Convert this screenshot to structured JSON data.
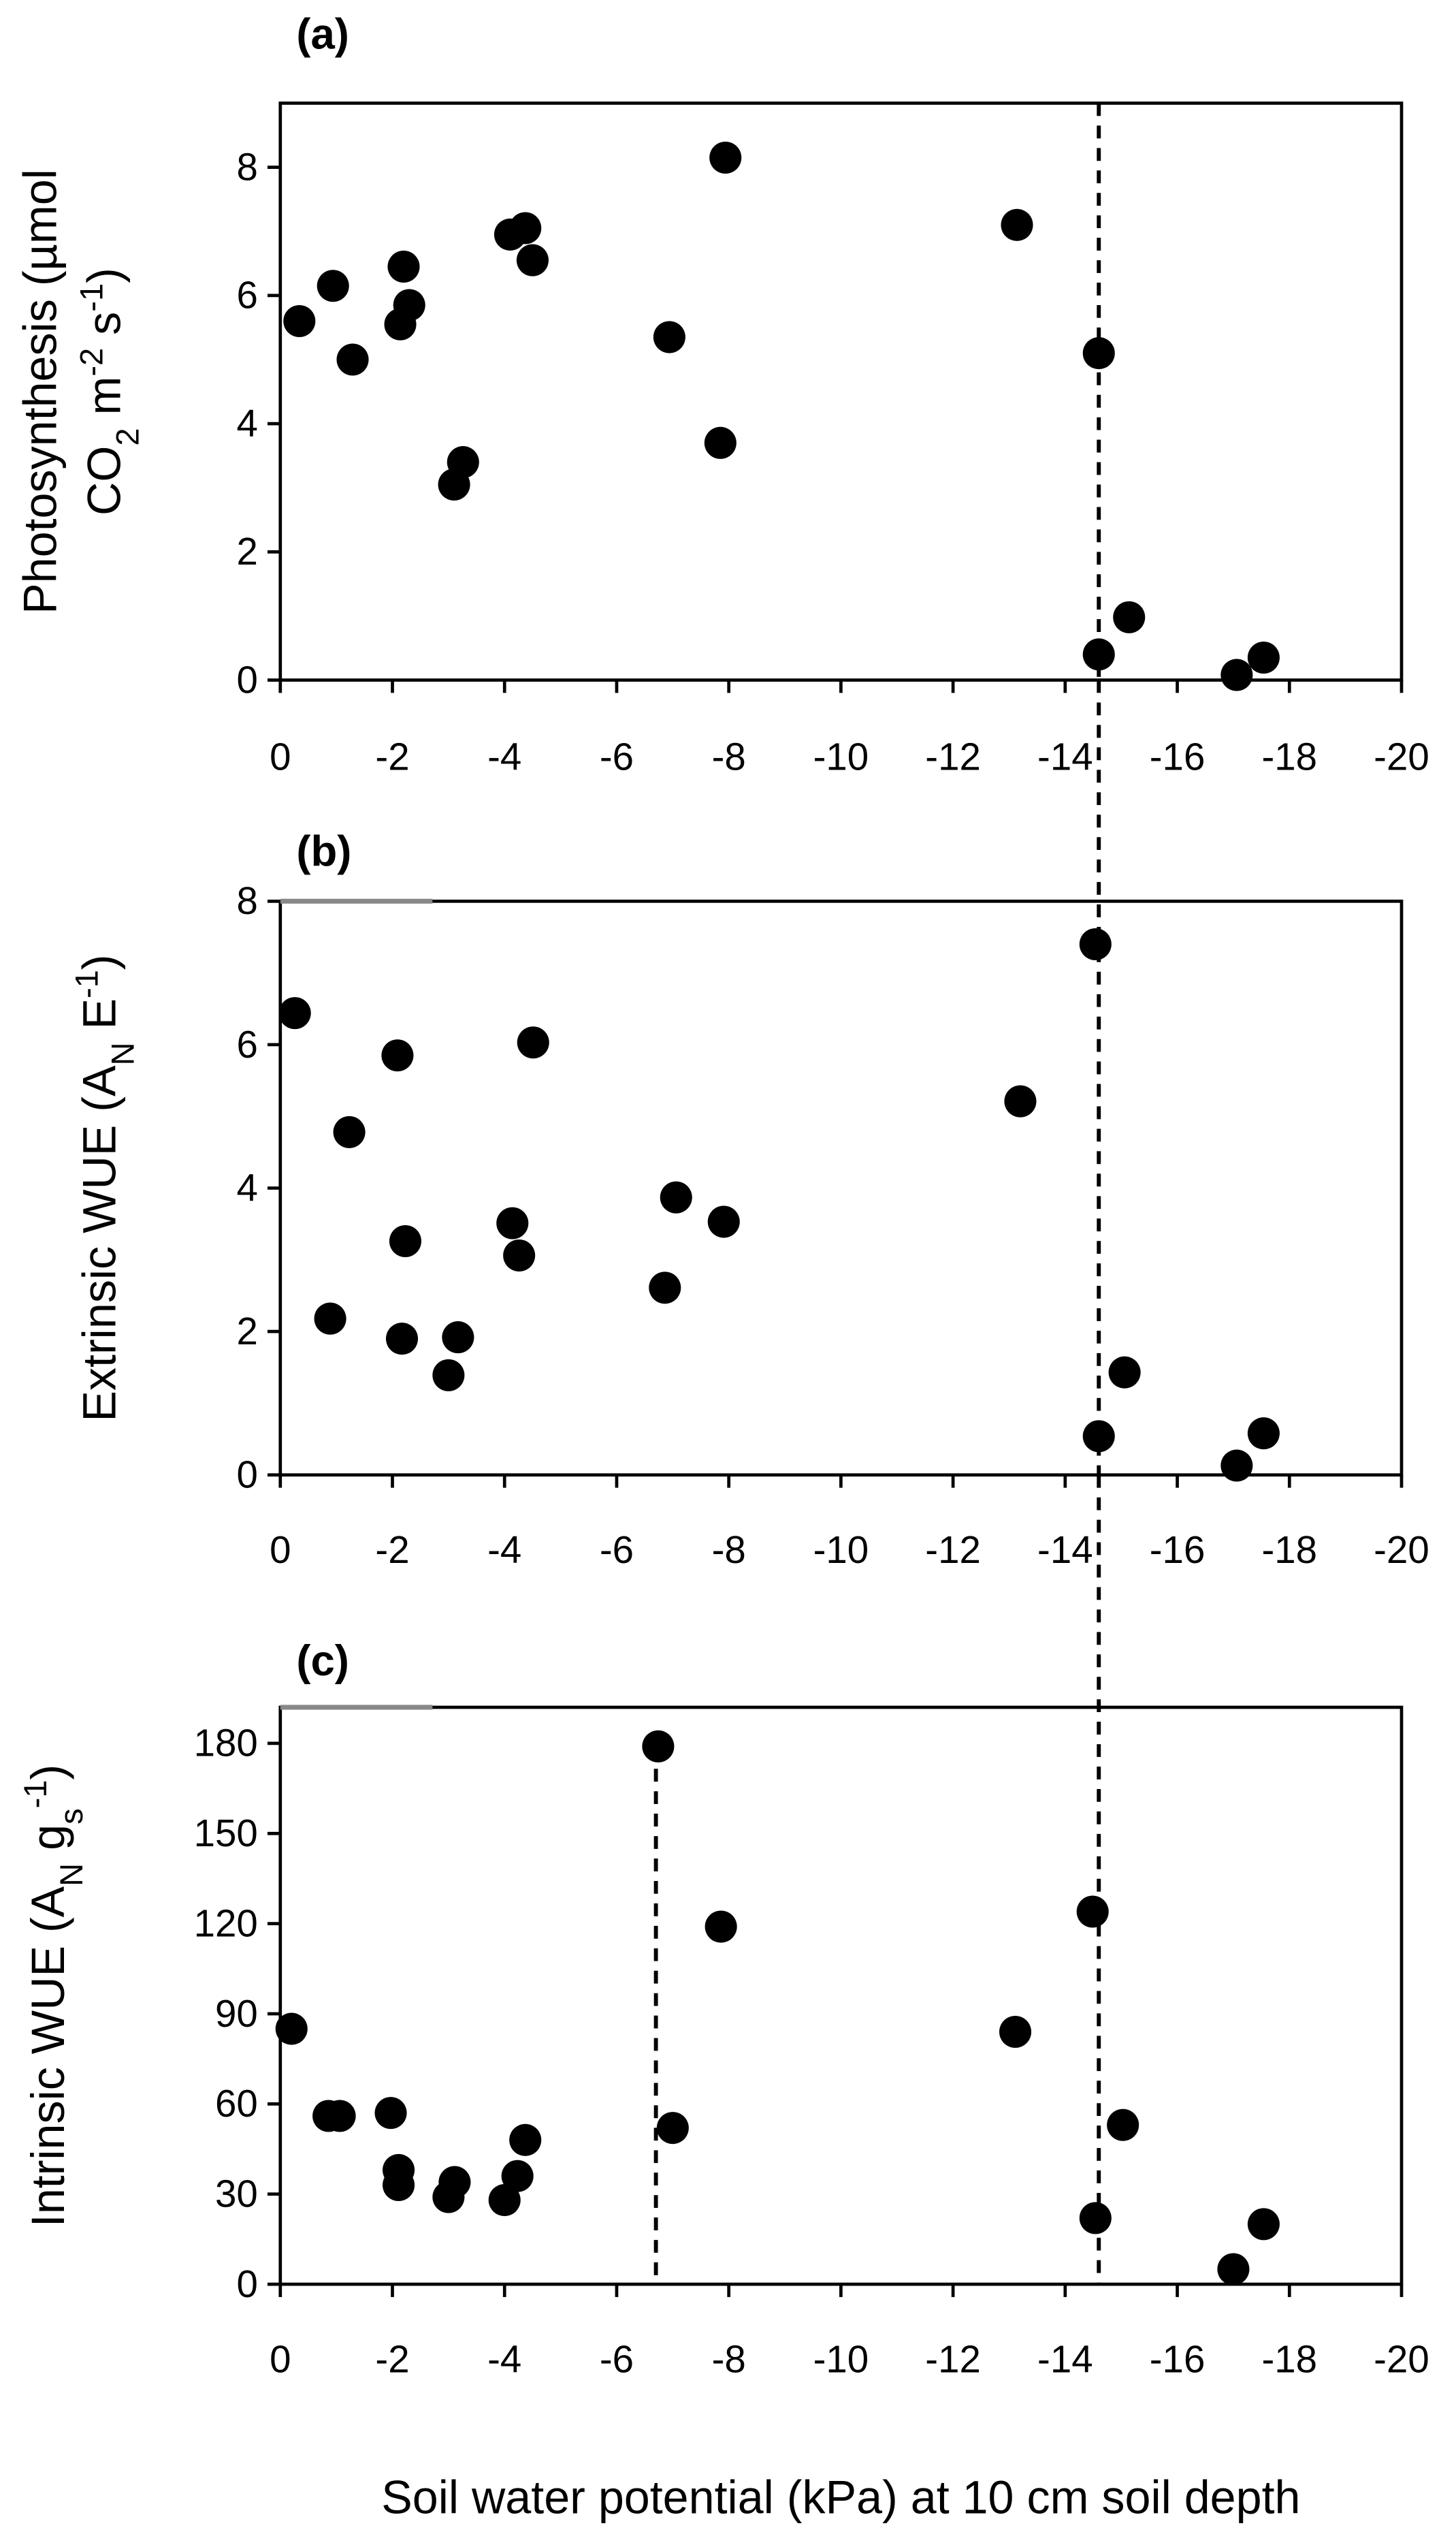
{
  "chart_data": [
    {
      "type": "scatter",
      "title": "(a)",
      "ylabel": [
        [
          {
            "text": "Photosynthesis (µmol"
          }
        ],
        [
          {
            "text": "CO"
          },
          {
            "text": "2",
            "script": "sub"
          },
          {
            "text": " m"
          },
          {
            "text": "-2",
            "script": "sup"
          },
          {
            "text": " s"
          },
          {
            "text": "-1",
            "script": "sup"
          },
          {
            "text": ")"
          }
        ]
      ],
      "xlim": [
        0,
        -20
      ],
      "xticks": [
        0,
        -2,
        -4,
        -6,
        -8,
        -10,
        -12,
        -14,
        -16,
        -18,
        -20
      ],
      "ylim": [
        0,
        9
      ],
      "yticks": [
        0,
        2,
        4,
        6,
        8
      ],
      "series": [
        {
          "color": "#000000",
          "x": [
            -0.34,
            -0.94,
            -1.29,
            -2.14,
            -2.2,
            -2.3,
            -3.1,
            -3.26,
            -4.1,
            -4.37,
            -4.5,
            -6.94,
            -7.94,
            -7.85,
            -13.14,
            -14.6,
            -14.6,
            -15.14,
            -17.06,
            -17.54
          ],
          "values": [
            5.6,
            6.15,
            5.0,
            5.55,
            6.45,
            5.85,
            3.05,
            3.4,
            6.95,
            7.05,
            6.55,
            5.35,
            8.15,
            3.7,
            7.1,
            5.1,
            0.4,
            0.98,
            0.08,
            0.35
          ]
        }
      ],
      "vlines": [
        {
          "x": -14.6
        }
      ]
    },
    {
      "type": "scatter",
      "title": "(b)",
      "ylabel": [
        [
          {
            "text": "Extrinsic WUE (A"
          },
          {
            "text": "N",
            "script": "sub"
          },
          {
            "text": " E"
          },
          {
            "text": "-1",
            "script": "sup"
          },
          {
            "text": ")"
          }
        ]
      ],
      "xlim": [
        0,
        -20
      ],
      "xticks": [
        0,
        -2,
        -4,
        -6,
        -8,
        -10,
        -12,
        -14,
        -16,
        -18,
        -20
      ],
      "ylim": [
        0,
        8
      ],
      "yticks": [
        0,
        2,
        4,
        6,
        8
      ],
      "series": [
        {
          "color": "#000000",
          "x": [
            -0.26,
            -0.89,
            -1.23,
            -2.09,
            -2.17,
            -2.23,
            -3.0,
            -3.17,
            -4.14,
            -4.26,
            -4.51,
            -6.86,
            -7.06,
            -7.91,
            -13.2,
            -14.54,
            -14.6,
            -15.06,
            -17.06,
            -17.54
          ],
          "values": [
            6.44,
            2.18,
            4.78,
            5.85,
            1.9,
            3.26,
            1.39,
            1.92,
            3.51,
            3.06,
            6.03,
            2.61,
            3.87,
            3.53,
            5.21,
            7.4,
            0.54,
            1.43,
            0.13,
            0.58
          ]
        }
      ],
      "vlines": [
        {
          "x": -14.6
        }
      ]
    },
    {
      "type": "scatter",
      "title": "(c)",
      "ylabel": [
        [
          {
            "text": "Intrinsic WUE (A"
          },
          {
            "text": "N",
            "script": "sub"
          },
          {
            "text": " g"
          },
          {
            "text": "s",
            "script": "sub"
          },
          {
            "text": "-1",
            "script": "sup"
          },
          {
            "text": ")"
          }
        ]
      ],
      "xlabel": "Soil water potential (kPa) at 10 cm soil depth",
      "xlim": [
        0,
        -20
      ],
      "xticks": [
        0,
        -2,
        -4,
        -6,
        -8,
        -10,
        -12,
        -14,
        -16,
        -18,
        -20
      ],
      "ylim": [
        0,
        192
      ],
      "yticks": [
        0,
        30,
        60,
        90,
        120,
        150,
        180
      ],
      "series": [
        {
          "color": "#000000",
          "x": [
            -0.2,
            -0.86,
            -1.06,
            -1.97,
            -2.11,
            -2.11,
            -3.0,
            -3.11,
            -4.0,
            -4.23,
            -4.37,
            -6.74,
            -7.0,
            -7.86,
            -13.11,
            -14.49,
            -14.54,
            -15.03,
            -17.0,
            -17.54
          ],
          "values": [
            85,
            56,
            56,
            57,
            38,
            33,
            29,
            34,
            28,
            36,
            48,
            179,
            52,
            119,
            84,
            124,
            22,
            53,
            5,
            20
          ]
        }
      ],
      "vlines": [
        {
          "x": -6.7,
          "top": 179
        },
        {
          "x": -14.6
        }
      ]
    }
  ]
}
